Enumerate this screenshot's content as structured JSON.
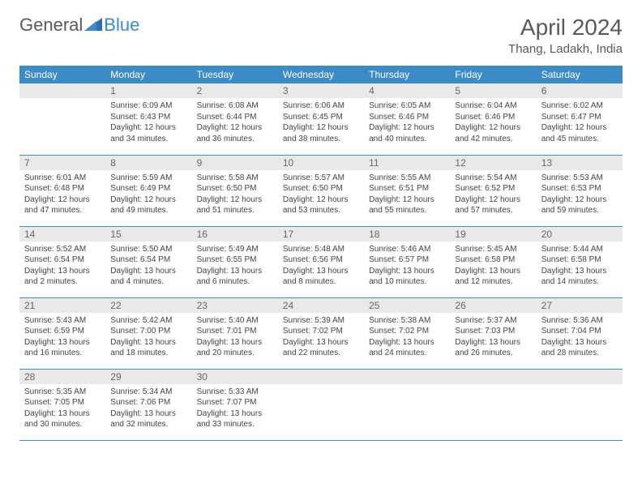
{
  "logo": {
    "text1": "General",
    "text2": "Blue",
    "color1": "#595959",
    "color2": "#3b8bc6"
  },
  "title": "April 2024",
  "location": "Thang, Ladakh, India",
  "header_bg": "#3b8bc6",
  "header_fg": "#ffffff",
  "daynum_bg": "#e9e9e9",
  "border_color": "#3b8bc6",
  "weekdays": [
    "Sunday",
    "Monday",
    "Tuesday",
    "Wednesday",
    "Thursday",
    "Friday",
    "Saturday"
  ],
  "weeks": [
    [
      {
        "n": "",
        "lines": []
      },
      {
        "n": "1",
        "lines": [
          "Sunrise: 6:09 AM",
          "Sunset: 6:43 PM",
          "Daylight: 12 hours and 34 minutes."
        ]
      },
      {
        "n": "2",
        "lines": [
          "Sunrise: 6:08 AM",
          "Sunset: 6:44 PM",
          "Daylight: 12 hours and 36 minutes."
        ]
      },
      {
        "n": "3",
        "lines": [
          "Sunrise: 6:06 AM",
          "Sunset: 6:45 PM",
          "Daylight: 12 hours and 38 minutes."
        ]
      },
      {
        "n": "4",
        "lines": [
          "Sunrise: 6:05 AM",
          "Sunset: 6:46 PM",
          "Daylight: 12 hours and 40 minutes."
        ]
      },
      {
        "n": "5",
        "lines": [
          "Sunrise: 6:04 AM",
          "Sunset: 6:46 PM",
          "Daylight: 12 hours and 42 minutes."
        ]
      },
      {
        "n": "6",
        "lines": [
          "Sunrise: 6:02 AM",
          "Sunset: 6:47 PM",
          "Daylight: 12 hours and 45 minutes."
        ]
      }
    ],
    [
      {
        "n": "7",
        "lines": [
          "Sunrise: 6:01 AM",
          "Sunset: 6:48 PM",
          "Daylight: 12 hours and 47 minutes."
        ]
      },
      {
        "n": "8",
        "lines": [
          "Sunrise: 5:59 AM",
          "Sunset: 6:49 PM",
          "Daylight: 12 hours and 49 minutes."
        ]
      },
      {
        "n": "9",
        "lines": [
          "Sunrise: 5:58 AM",
          "Sunset: 6:50 PM",
          "Daylight: 12 hours and 51 minutes."
        ]
      },
      {
        "n": "10",
        "lines": [
          "Sunrise: 5:57 AM",
          "Sunset: 6:50 PM",
          "Daylight: 12 hours and 53 minutes."
        ]
      },
      {
        "n": "11",
        "lines": [
          "Sunrise: 5:55 AM",
          "Sunset: 6:51 PM",
          "Daylight: 12 hours and 55 minutes."
        ]
      },
      {
        "n": "12",
        "lines": [
          "Sunrise: 5:54 AM",
          "Sunset: 6:52 PM",
          "Daylight: 12 hours and 57 minutes."
        ]
      },
      {
        "n": "13",
        "lines": [
          "Sunrise: 5:53 AM",
          "Sunset: 6:53 PM",
          "Daylight: 12 hours and 59 minutes."
        ]
      }
    ],
    [
      {
        "n": "14",
        "lines": [
          "Sunrise: 5:52 AM",
          "Sunset: 6:54 PM",
          "Daylight: 13 hours and 2 minutes."
        ]
      },
      {
        "n": "15",
        "lines": [
          "Sunrise: 5:50 AM",
          "Sunset: 6:54 PM",
          "Daylight: 13 hours and 4 minutes."
        ]
      },
      {
        "n": "16",
        "lines": [
          "Sunrise: 5:49 AM",
          "Sunset: 6:55 PM",
          "Daylight: 13 hours and 6 minutes."
        ]
      },
      {
        "n": "17",
        "lines": [
          "Sunrise: 5:48 AM",
          "Sunset: 6:56 PM",
          "Daylight: 13 hours and 8 minutes."
        ]
      },
      {
        "n": "18",
        "lines": [
          "Sunrise: 5:46 AM",
          "Sunset: 6:57 PM",
          "Daylight: 13 hours and 10 minutes."
        ]
      },
      {
        "n": "19",
        "lines": [
          "Sunrise: 5:45 AM",
          "Sunset: 6:58 PM",
          "Daylight: 13 hours and 12 minutes."
        ]
      },
      {
        "n": "20",
        "lines": [
          "Sunrise: 5:44 AM",
          "Sunset: 6:58 PM",
          "Daylight: 13 hours and 14 minutes."
        ]
      }
    ],
    [
      {
        "n": "21",
        "lines": [
          "Sunrise: 5:43 AM",
          "Sunset: 6:59 PM",
          "Daylight: 13 hours and 16 minutes."
        ]
      },
      {
        "n": "22",
        "lines": [
          "Sunrise: 5:42 AM",
          "Sunset: 7:00 PM",
          "Daylight: 13 hours and 18 minutes."
        ]
      },
      {
        "n": "23",
        "lines": [
          "Sunrise: 5:40 AM",
          "Sunset: 7:01 PM",
          "Daylight: 13 hours and 20 minutes."
        ]
      },
      {
        "n": "24",
        "lines": [
          "Sunrise: 5:39 AM",
          "Sunset: 7:02 PM",
          "Daylight: 13 hours and 22 minutes."
        ]
      },
      {
        "n": "25",
        "lines": [
          "Sunrise: 5:38 AM",
          "Sunset: 7:02 PM",
          "Daylight: 13 hours and 24 minutes."
        ]
      },
      {
        "n": "26",
        "lines": [
          "Sunrise: 5:37 AM",
          "Sunset: 7:03 PM",
          "Daylight: 13 hours and 26 minutes."
        ]
      },
      {
        "n": "27",
        "lines": [
          "Sunrise: 5:36 AM",
          "Sunset: 7:04 PM",
          "Daylight: 13 hours and 28 minutes."
        ]
      }
    ],
    [
      {
        "n": "28",
        "lines": [
          "Sunrise: 5:35 AM",
          "Sunset: 7:05 PM",
          "Daylight: 13 hours and 30 minutes."
        ]
      },
      {
        "n": "29",
        "lines": [
          "Sunrise: 5:34 AM",
          "Sunset: 7:06 PM",
          "Daylight: 13 hours and 32 minutes."
        ]
      },
      {
        "n": "30",
        "lines": [
          "Sunrise: 5:33 AM",
          "Sunset: 7:07 PM",
          "Daylight: 13 hours and 33 minutes."
        ]
      },
      {
        "n": "",
        "lines": []
      },
      {
        "n": "",
        "lines": []
      },
      {
        "n": "",
        "lines": []
      },
      {
        "n": "",
        "lines": []
      }
    ]
  ]
}
